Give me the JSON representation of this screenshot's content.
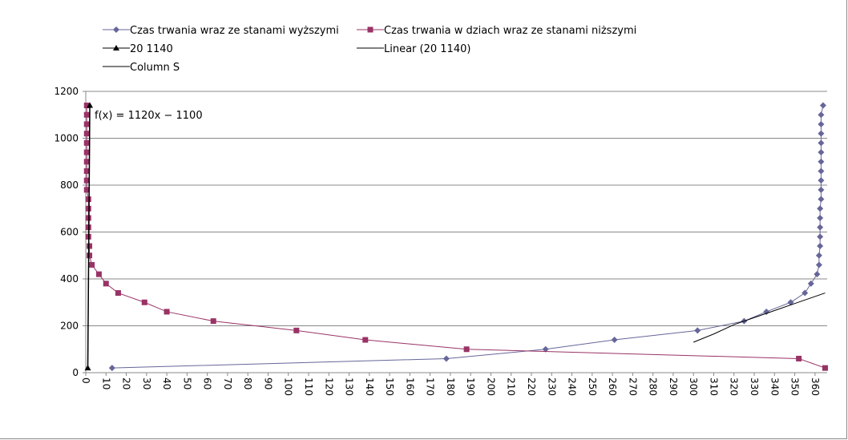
{
  "chart_data": {
    "type": "line",
    "title": "",
    "xlabel": "",
    "ylabel": "",
    "xlim": [
      0,
      366
    ],
    "ylim": [
      0,
      1200
    ],
    "xticks": [
      0,
      10,
      20,
      30,
      40,
      50,
      60,
      70,
      80,
      90,
      100,
      110,
      120,
      130,
      140,
      150,
      160,
      170,
      180,
      190,
      200,
      210,
      220,
      230,
      240,
      250,
      260,
      270,
      280,
      290,
      300,
      310,
      320,
      330,
      340,
      350,
      360
    ],
    "yticks": [
      0,
      200,
      400,
      600,
      800,
      1000,
      1200
    ],
    "grid": "horizontal",
    "legend_position": "top",
    "annotation": "f(x) = 1120x − 1100",
    "series": [
      {
        "name": "Czas trwania wraz ze stanami wyższymi",
        "color": "#666699",
        "marker": "diamond",
        "x": [
          13,
          178,
          227,
          261,
          302,
          325,
          336,
          348,
          355,
          358,
          361,
          362,
          362,
          362.5,
          362.5,
          362.5,
          362.5,
          362.5,
          363,
          363,
          363,
          363,
          363,
          363,
          363,
          363,
          363,
          363,
          364
        ],
        "y": [
          20,
          60,
          100,
          140,
          180,
          220,
          260,
          300,
          340,
          380,
          420,
          460,
          500,
          540,
          580,
          620,
          660,
          700,
          740,
          780,
          820,
          860,
          900,
          940,
          980,
          1020,
          1060,
          1100,
          1140
        ]
      },
      {
        "name": "Czas trwania w dziach wraz ze stanami niższymi",
        "color": "#993366",
        "marker": "square",
        "x": [
          0.5,
          0.5,
          0.5,
          0.5,
          0.5,
          0.5,
          0.5,
          0.5,
          0.5,
          0.5,
          1.3,
          1.3,
          1.3,
          1.3,
          1.3,
          1.8,
          1.8,
          3,
          6.5,
          10,
          16,
          29,
          40,
          63,
          104,
          138,
          188,
          352,
          365
        ],
        "y": [
          1140,
          1100,
          1060,
          1020,
          980,
          940,
          900,
          860,
          820,
          780,
          740,
          700,
          660,
          620,
          580,
          540,
          500,
          460,
          420,
          380,
          340,
          300,
          260,
          220,
          180,
          140,
          100,
          60,
          20
        ]
      },
      {
        "name": "20 1140",
        "color": "#000000",
        "marker": "triangle",
        "x": [
          1,
          2
        ],
        "y": [
          20,
          1140
        ]
      },
      {
        "name": "Linear (20 1140)",
        "color": "#000000",
        "marker": "none",
        "x": [
          1,
          2
        ],
        "y": [
          20,
          1140
        ]
      },
      {
        "name": "Column S",
        "color": "#000000",
        "marker": "none",
        "x": [
          300,
          310,
          320,
          330,
          340,
          350,
          360,
          365
        ],
        "y": [
          130,
          165,
          205,
          235,
          265,
          295,
          325,
          340
        ]
      }
    ]
  }
}
